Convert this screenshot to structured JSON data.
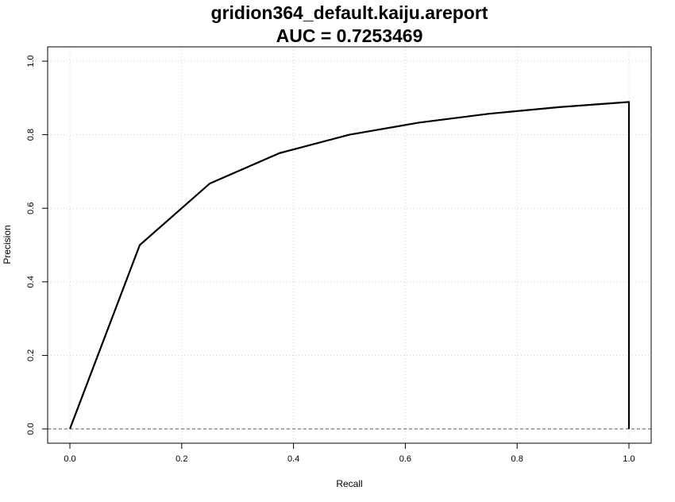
{
  "chart_data": {
    "type": "line",
    "title": "gridion364_default.kaiju.areport",
    "subtitle": "AUC = 0.7253469",
    "xlabel": "Recall",
    "ylabel": "Precision",
    "xlim": [
      0.0,
      1.0
    ],
    "ylim": [
      0.0,
      1.0
    ],
    "x_ticks": [
      "0.0",
      "0.2",
      "0.4",
      "0.6",
      "0.8",
      "1.0"
    ],
    "y_ticks": [
      "0.0",
      "0.2",
      "0.4",
      "0.6",
      "0.8",
      "1.0"
    ],
    "grid": true,
    "baseline": 0.0,
    "series": [
      {
        "x": [
          0.0,
          0.125,
          0.25,
          0.375,
          0.5,
          0.625,
          0.75,
          0.875,
          1.0,
          1.0
        ],
        "y": [
          0.0,
          0.5,
          0.667,
          0.75,
          0.8,
          0.833,
          0.857,
          0.875,
          0.889,
          0.0
        ],
        "color": "#000000"
      }
    ]
  }
}
